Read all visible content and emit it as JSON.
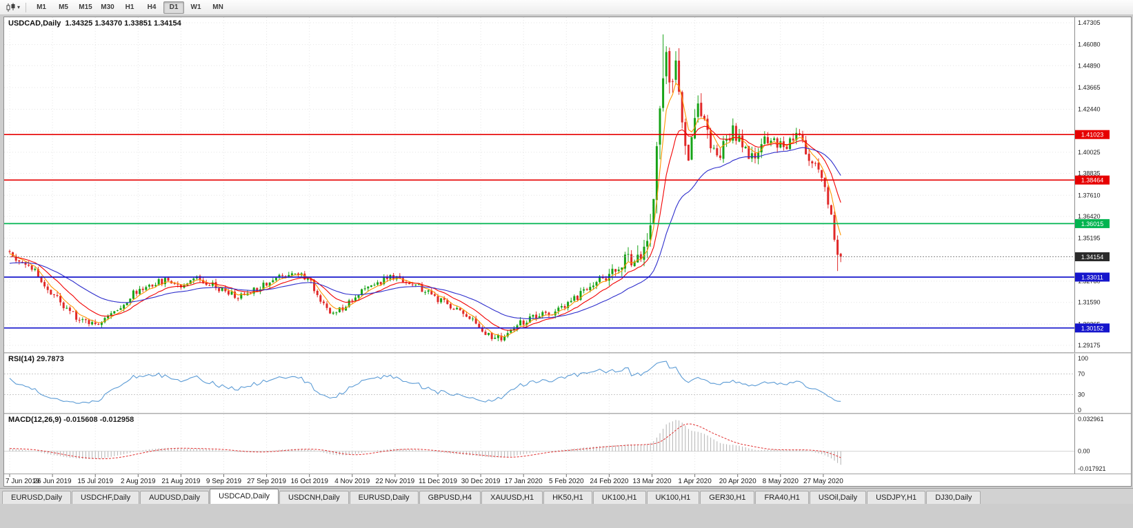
{
  "toolbar": {
    "chart_type_icon": "candlestick-chart-icon",
    "timeframes": [
      "M1",
      "M5",
      "M15",
      "M30",
      "H1",
      "H4",
      "D1",
      "W1",
      "MN"
    ],
    "active_timeframe": "D1"
  },
  "chart": {
    "symbol_title": "USDCAD,Daily",
    "ohlc_text": "1.34325 1.34370 1.33851 1.34154"
  },
  "indicators": {
    "rsi": {
      "name": "RSI(14)",
      "value": "29.7873",
      "axis_labels": [
        "100",
        "70",
        "30",
        "0"
      ],
      "levels": [
        70,
        30
      ],
      "line_color": "#5b9bd5"
    },
    "macd": {
      "name": "MACD(12,26,9)",
      "value_main": "-0.015608",
      "value_signal": "-0.012958",
      "axis_labels": [
        "0.032961",
        "0.00",
        "-0.017921"
      ],
      "hist_color": "#b2b2b2",
      "signal_color": "#e03030"
    }
  },
  "chart_data": {
    "type": "candlestick",
    "symbol": "USDCAD",
    "period": "Daily",
    "visible_candles": 263,
    "price_axis_labels": [
      "1.47305",
      "1.46080",
      "1.44890",
      "1.43665",
      "1.42440",
      "1.40025",
      "1.38835",
      "1.37610",
      "1.36420",
      "1.35195",
      "1.32780",
      "1.31590",
      "1.30365",
      "1.29175"
    ],
    "hidden_grid_prices": [
      1.41215,
      1.3399
    ],
    "date_ticks": [
      "7 Jun 2019",
      "26 Jun 2019",
      "15 Jul 2019",
      "2 Aug 2019",
      "21 Aug 2019",
      "9 Sep 2019",
      "27 Sep 2019",
      "16 Oct 2019",
      "4 Nov 2019",
      "22 Nov 2019",
      "11 Dec 2019",
      "30 Dec 2019",
      "17 Jan 2020",
      "5 Feb 2020",
      "24 Feb 2020",
      "13 Mar 2020",
      "1 Apr 2020",
      "20 Apr 2020",
      "8 May 2020",
      "27 May 2020"
    ],
    "horizontal_lines": [
      {
        "price": 1.41023,
        "label": "1.41023",
        "color": "#e60000"
      },
      {
        "price": 1.38464,
        "label": "1.38464",
        "color": "#e60000"
      },
      {
        "price": 1.36015,
        "label": "1.36015",
        "color": "#00b450"
      },
      {
        "price": 1.33011,
        "label": "1.33011",
        "color": "#1616cc"
      },
      {
        "price": 1.30152,
        "label": "1.30152",
        "color": "#1616cc"
      }
    ],
    "current_price": {
      "price": 1.34154,
      "label": "1.34154",
      "tag_color": "#2b2b2b"
    },
    "candle_colors": {
      "up": "#17a317",
      "down": "#e02828"
    },
    "moving_averages": [
      {
        "type": "ema",
        "period": 5,
        "color": "#ff9500"
      },
      {
        "type": "ema",
        "period": 13,
        "color": "#f20000"
      },
      {
        "type": "ema",
        "period": 34,
        "color": "#2d2dcc"
      }
    ],
    "last_candle_ohlc": [
      1.34325,
      1.3437,
      1.33851,
      1.34154
    ],
    "high_overrides": {
      "206": 1.4665
    },
    "low_overrides": {
      "261": 1.3335
    },
    "seed": 11,
    "gen_prefix": 55,
    "price_anchors": [
      [
        -55,
        1.328
      ],
      [
        -35,
        1.33
      ],
      [
        -20,
        1.334
      ],
      [
        -8,
        1.342
      ],
      [
        0,
        1.3425
      ],
      [
        4,
        1.3395
      ],
      [
        8,
        1.333
      ],
      [
        13,
        1.321
      ],
      [
        18,
        1.312
      ],
      [
        23,
        1.306
      ],
      [
        27,
        1.3045
      ],
      [
        31,
        1.308
      ],
      [
        36,
        1.315
      ],
      [
        40,
        1.322
      ],
      [
        45,
        1.3265
      ],
      [
        50,
        1.3285
      ],
      [
        54,
        1.3255
      ],
      [
        58,
        1.33
      ],
      [
        63,
        1.327
      ],
      [
        67,
        1.323
      ],
      [
        72,
        1.319
      ],
      [
        77,
        1.323
      ],
      [
        81,
        1.327
      ],
      [
        86,
        1.331
      ],
      [
        90,
        1.333
      ],
      [
        94,
        1.329
      ],
      [
        98,
        1.318
      ],
      [
        101,
        1.3095
      ],
      [
        105,
        1.313
      ],
      [
        108,
        1.3185
      ],
      [
        112,
        1.323
      ],
      [
        116,
        1.327
      ],
      [
        120,
        1.33
      ],
      [
        124,
        1.3285
      ],
      [
        128,
        1.325
      ],
      [
        132,
        1.321
      ],
      [
        136,
        1.3165
      ],
      [
        140,
        1.313
      ],
      [
        144,
        1.309
      ],
      [
        148,
        1.302
      ],
      [
        152,
        1.2965
      ],
      [
        155,
        1.2955
      ],
      [
        158,
        1.2995
      ],
      [
        162,
        1.305
      ],
      [
        166,
        1.3075
      ],
      [
        170,
        1.3095
      ],
      [
        174,
        1.312
      ],
      [
        178,
        1.318
      ],
      [
        182,
        1.324
      ],
      [
        186,
        1.329
      ],
      [
        189,
        1.331
      ],
      [
        192,
        1.334
      ],
      [
        195,
        1.34
      ],
      [
        198,
        1.344
      ],
      [
        200,
        1.342
      ],
      [
        202,
        1.363
      ],
      [
        204,
        1.398
      ],
      [
        206,
        1.448
      ],
      [
        207,
        1.45
      ],
      [
        208,
        1.434
      ],
      [
        209,
        1.442
      ],
      [
        210,
        1.446
      ],
      [
        211,
        1.43
      ],
      [
        212,
        1.418
      ],
      [
        213,
        1.408
      ],
      [
        214,
        1.402
      ],
      [
        215,
        1.41
      ],
      [
        216,
        1.418
      ],
      [
        217,
        1.428
      ],
      [
        218,
        1.424
      ],
      [
        219,
        1.414
      ],
      [
        220,
        1.408
      ],
      [
        222,
        1.403
      ],
      [
        224,
        1.398
      ],
      [
        226,
        1.406
      ],
      [
        228,
        1.412
      ],
      [
        230,
        1.408
      ],
      [
        232,
        1.402
      ],
      [
        234,
        1.396
      ],
      [
        236,
        1.4
      ],
      [
        238,
        1.406
      ],
      [
        240,
        1.409
      ],
      [
        242,
        1.406
      ],
      [
        244,
        1.403
      ],
      [
        246,
        1.407
      ],
      [
        248,
        1.411
      ],
      [
        250,
        1.405
      ],
      [
        252,
        1.398
      ],
      [
        254,
        1.392
      ],
      [
        256,
        1.387
      ],
      [
        258,
        1.373
      ],
      [
        260,
        1.353
      ],
      [
        261,
        1.3425
      ],
      [
        262,
        1.34154
      ]
    ],
    "volatility_anchors": [
      [
        -55,
        0.0045
      ],
      [
        0,
        0.0045
      ],
      [
        60,
        0.0042
      ],
      [
        120,
        0.0038
      ],
      [
        150,
        0.004
      ],
      [
        185,
        0.005
      ],
      [
        195,
        0.011
      ],
      [
        202,
        0.016
      ],
      [
        207,
        0.02
      ],
      [
        213,
        0.015
      ],
      [
        222,
        0.011
      ],
      [
        232,
        0.0085
      ],
      [
        243,
        0.007
      ],
      [
        252,
        0.0065
      ],
      [
        262,
        0.006
      ]
    ]
  },
  "tabs": {
    "active_index": 3,
    "items": [
      "EURUSD,Daily",
      "USDCHF,Daily",
      "AUDUSD,Daily",
      "USDCAD,Daily",
      "USDCNH,Daily",
      "EURUSD,Daily",
      "GBPUSD,H4",
      "XAUUSD,H1",
      "HK50,H1",
      "UK100,H1",
      "UK100,H1",
      "GER30,H1",
      "FRA40,H1",
      "USOil,Daily",
      "USDJPY,H1",
      "DJ30,Daily"
    ]
  }
}
